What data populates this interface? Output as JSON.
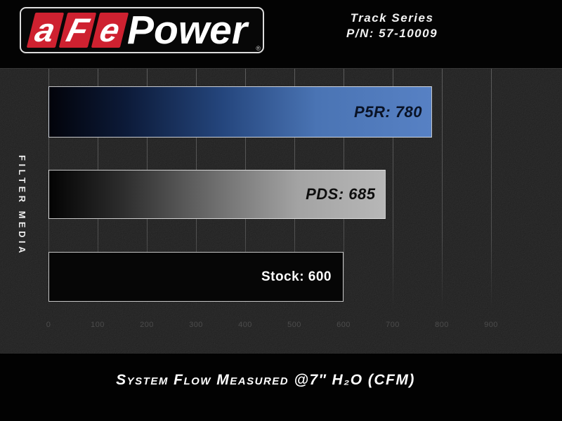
{
  "header": {
    "logo": {
      "segments": [
        "a",
        "F",
        "e"
      ],
      "wordmark": "Power",
      "reg_mark": "®",
      "brand_red": "#ce2130",
      "outline_color": "#dcdcdc"
    },
    "series_label": {
      "line1": "Track Series",
      "line2": "P/N: 57-10009"
    }
  },
  "chart_data": {
    "type": "bar",
    "orientation": "horizontal",
    "title": "",
    "ylabel": "FILTER MEDIA",
    "xlabel": "System Flow Measured @7″ H₂O (CFM)",
    "categories": [
      "P5R",
      "PDS",
      "Stock"
    ],
    "values": [
      780,
      685,
      600
    ],
    "bar_labels": [
      "P5R: 780",
      "PDS: 685",
      "Stock: 600"
    ],
    "x_ticks": [
      0,
      100,
      200,
      300,
      400,
      500,
      600,
      700,
      800,
      900
    ],
    "xlim": [
      0,
      1000
    ],
    "grid": true,
    "legend_position": "none",
    "series_colors": {
      "P5R_end": "#5781c4",
      "PDS_end": "#b7b7b7",
      "Stock": "#060606",
      "gradient_start": "#020305"
    },
    "label_colors": {
      "P5R": "#0a1326",
      "PDS": "#0e0e0e",
      "Stock": "#ffffff"
    }
  },
  "footer": {
    "caption": "System Flow Measured @7″ H₂O (CFM)"
  }
}
